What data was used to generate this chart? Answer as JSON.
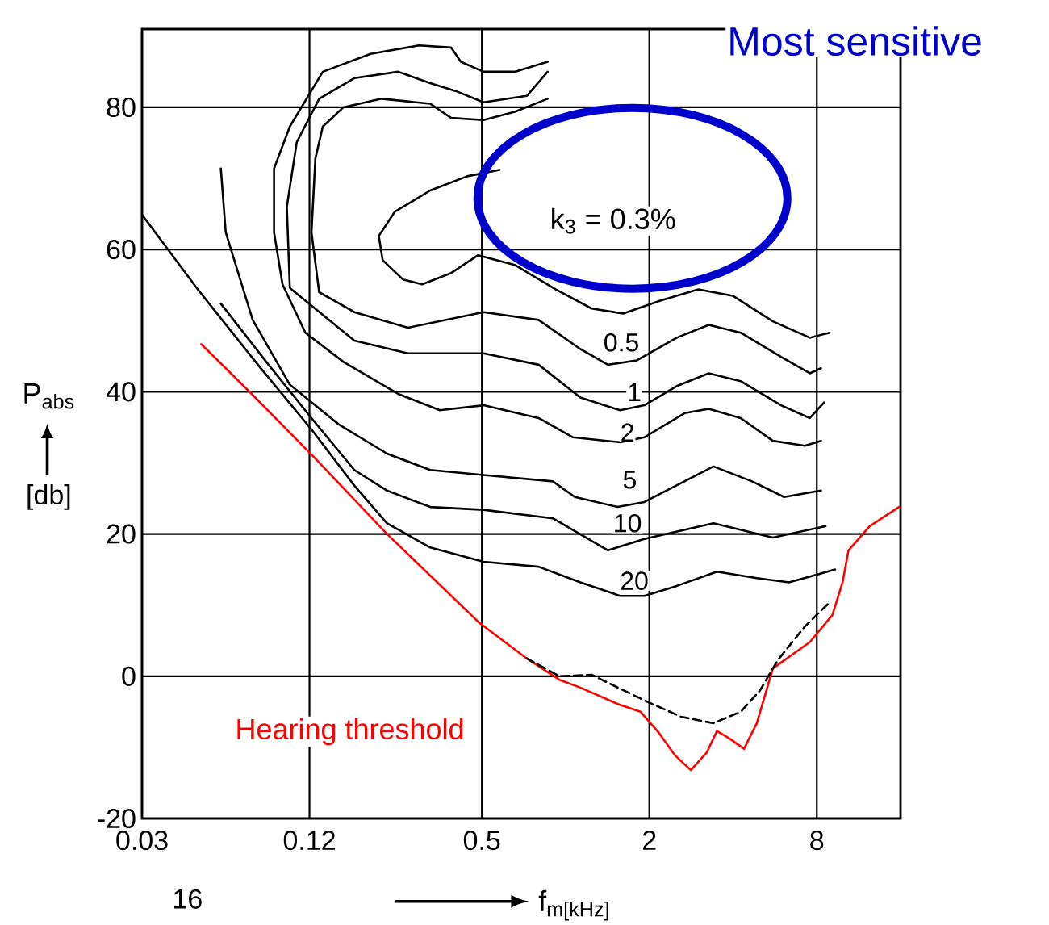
{
  "chart_data": {
    "type": "line",
    "xlabel": "f$_{m[kHz]}$",
    "ylabel": "P$_{abs}$",
    "log": "x",
    "xlim": [
      0.03,
      16
    ],
    "xticks": [
      0.03,
      0.12,
      0.5,
      2,
      8
    ],
    "ylim": [
      -20,
      91
    ],
    "yticks": [
      -20,
      0,
      20,
      40,
      60,
      80
    ],
    "grid": true,
    "marker": "none",
    "line_style": "solid",
    "series": [
      {
        "name": "Hearing threshold",
        "color": "#ff0000",
        "x": [
          0.049,
          0.0735,
          0.126,
          0.228,
          0.49,
          0.725,
          0.95,
          1.13,
          1.54,
          1.86,
          2.16,
          2.47,
          2.82,
          3.22,
          3.5,
          3.9,
          4.38,
          4.87,
          5.56,
          7.55,
          9.1,
          9.9,
          10.4,
          12.4,
          15.8
        ],
        "values": [
          46.7,
          39.9,
          30.6,
          20.0,
          7.5,
          2.5,
          -0.5,
          -1.6,
          -3.9,
          -5.0,
          -7.9,
          -11.1,
          -13.2,
          -10.7,
          -7.7,
          -8.8,
          -10.2,
          -6.6,
          1.1,
          4.8,
          8.6,
          13.2,
          17.7,
          21.1,
          23.8
        ]
      },
      {
        "color": "#000000",
        "line_style": "dashed",
        "x": [
          0.725,
          0.95,
          1.24,
          1.92,
          2.6,
          3.4,
          4.26,
          5.0,
          5.8,
          7.25,
          8.9
        ],
        "values": [
          2.5,
          0,
          0.2,
          -3.4,
          -5.7,
          -6.6,
          -5.0,
          -2.0,
          2.3,
          7.0,
          10.4
        ]
      },
      {
        "color": "#000000",
        "x": [
          0.579,
          0.443,
          0.326,
          0.243,
          0.213,
          0.22,
          0.26,
          0.305,
          0.388,
          0.485,
          0.66,
          0.92,
          1.24,
          1.61,
          2.19,
          3.0,
          3.99,
          5.56,
          7.55,
          8.9
        ],
        "values": [
          71.2,
          70.3,
          68.3,
          65.3,
          61.9,
          58.5,
          55.8,
          55.1,
          56.7,
          59.2,
          57.8,
          54.4,
          51.7,
          51.0,
          52.8,
          54.4,
          53.5,
          49.9,
          47.6,
          48.3
        ]
      },
      {
        "color": "#000000",
        "x": [
          0.862,
          0.66,
          0.507,
          0.388,
          0.326,
          0.218,
          0.159,
          0.134,
          0.126,
          0.122,
          0.13,
          0.174,
          0.271,
          0.507,
          0.8,
          1.13,
          1.42,
          1.8,
          2.51,
          3.27,
          4.26,
          5.95,
          7.55,
          8.28
        ],
        "values": [
          81.2,
          79.4,
          78.2,
          78.5,
          80.5,
          81.2,
          80.0,
          77.3,
          72.8,
          62.4,
          54.0,
          51.2,
          49.0,
          51.2,
          50.1,
          46.0,
          43.8,
          44.4,
          47.6,
          49.4,
          48.3,
          44.9,
          42.6,
          43.3
        ]
      },
      {
        "color": "#000000",
        "x": [
          0.862,
          0.725,
          0.507,
          0.402,
          0.326,
          0.25,
          0.174,
          0.13,
          0.108,
          0.0995,
          0.102,
          0.174,
          0.271,
          0.507,
          0.8,
          1.13,
          1.57,
          1.92,
          2.51,
          3.27,
          4.26,
          5.95,
          7.55,
          8.5
        ],
        "values": [
          85.0,
          81.6,
          80.7,
          82.3,
          83.4,
          85.0,
          84.1,
          81.2,
          75.1,
          66.0,
          54.6,
          47.2,
          45.4,
          45.4,
          43.8,
          39.2,
          37.4,
          38.1,
          40.8,
          42.6,
          41.5,
          38.1,
          36.3,
          38.5
        ]
      },
      {
        "color": "#000000",
        "x": [
          0.862,
          0.66,
          0.507,
          0.42,
          0.388,
          0.297,
          0.199,
          0.134,
          0.102,
          0.0895,
          0.0895,
          0.096,
          0.116,
          0.159,
          0.25,
          0.353,
          0.507,
          0.8,
          1.06,
          1.57,
          1.92,
          2.68,
          3.27,
          4.26,
          5.56,
          7.25,
          8.28
        ],
        "values": [
          86.4,
          85.0,
          85.0,
          86.4,
          88.4,
          88.7,
          87.5,
          85.0,
          77.3,
          71.4,
          62.4,
          55.1,
          48.3,
          44.2,
          39.7,
          37.4,
          38.1,
          36.3,
          33.6,
          32.9,
          33.6,
          37.0,
          37.6,
          36.3,
          33.1,
          32.4,
          33.1
        ]
      },
      {
        "color": "#000000",
        "x": [
          0.0576,
          0.06,
          0.075,
          0.102,
          0.153,
          0.228,
          0.326,
          0.507,
          0.9,
          1.08,
          1.54,
          1.92,
          3.4,
          4.68,
          6.1,
          8.28
        ],
        "values": [
          71.4,
          62.4,
          50.1,
          41.0,
          35.4,
          31.3,
          29.0,
          28.3,
          27.4,
          25.2,
          23.8,
          24.5,
          29.5,
          27.4,
          25.2,
          26.1
        ]
      },
      {
        "color": "#000000",
        "x": [
          0.0576,
          0.0855,
          0.122,
          0.174,
          0.228,
          0.326,
          0.507,
          0.9,
          1.42,
          1.92,
          3.4,
          5.56,
          8.6
        ],
        "values": [
          52.4,
          43.8,
          36.3,
          29.0,
          26.1,
          23.8,
          23.4,
          22.2,
          17.7,
          19.3,
          21.5,
          19.5,
          21.1
        ]
      },
      {
        "color": "#000000",
        "x": [
          0.03,
          0.0476,
          0.0783,
          0.122,
          0.174,
          0.228,
          0.326,
          0.507,
          0.8,
          1.13,
          1.57,
          1.92,
          2.51,
          3.5,
          4.87,
          6.35,
          9.3
        ],
        "values": [
          64.9,
          54.4,
          43.8,
          34.7,
          26.8,
          21.5,
          18.1,
          16.1,
          15.4,
          13.2,
          11.3,
          11.3,
          12.7,
          14.7,
          13.8,
          13.2,
          15.0
        ]
      }
    ],
    "annotations": [
      "Most sensitive",
      "k$_{3}$ = 0.3%",
      "0.5",
      "1",
      "2",
      "5",
      "10",
      "20",
      "[db]",
      "16"
    ]
  }
}
